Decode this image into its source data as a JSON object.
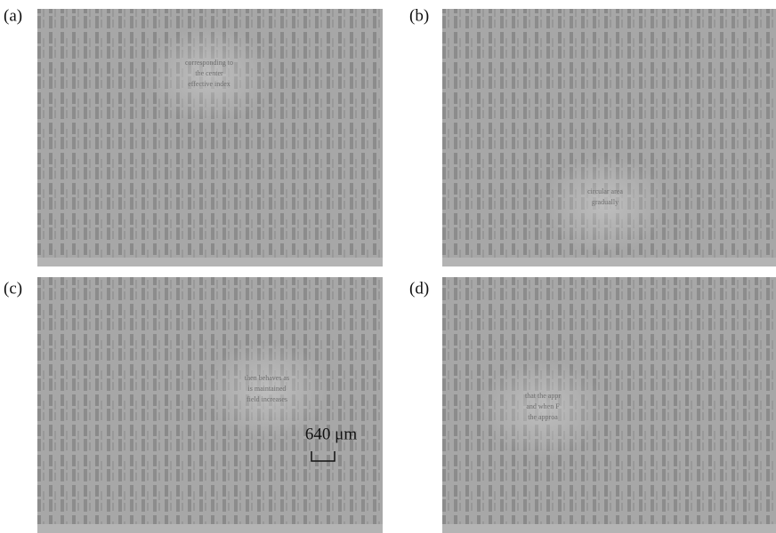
{
  "panels": [
    {
      "label": "(a)",
      "texts": [
        "corresponding to",
        "the center",
        "effective index"
      ]
    },
    {
      "label": "(b)",
      "texts": [
        "circular area",
        "gradually"
      ]
    },
    {
      "label": "(c)",
      "texts": [
        "then behaves as",
        "is maintained",
        "field increases"
      ]
    },
    {
      "label": "(d)",
      "texts": [
        "that the appr",
        "and when F",
        "the approa"
      ]
    }
  ],
  "scale_bar": {
    "label": "640 μm"
  }
}
